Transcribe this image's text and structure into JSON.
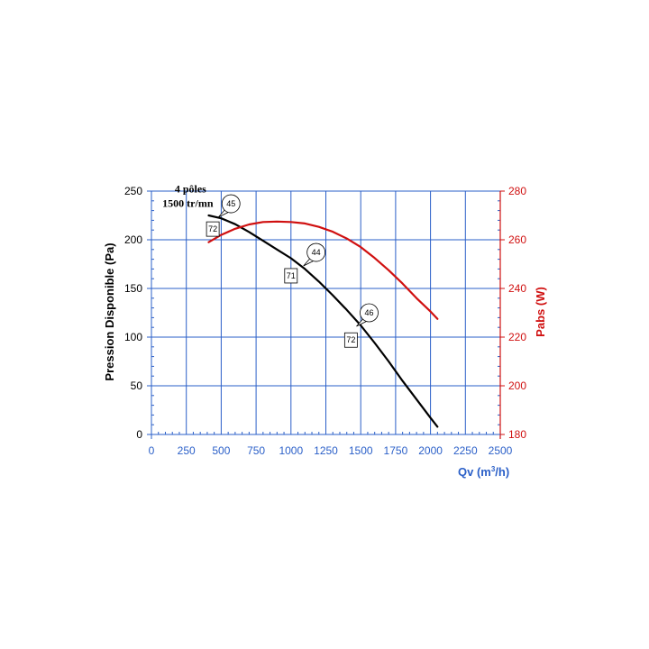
{
  "chart_data": {
    "type": "line",
    "xlabel": "Qv (m³/h)",
    "xlabel_main": "Qv (m",
    "xlabel_sup": "3",
    "xlabel_tail": "/h)",
    "ylabel_left": "Pression Disponible (Pa)",
    "ylabel_right": "Pabs (W)",
    "xlim": [
      0,
      2500
    ],
    "ylim_left": [
      0,
      250
    ],
    "ylim_right": [
      180,
      280
    ],
    "x_ticks": [
      0,
      250,
      500,
      750,
      1000,
      1250,
      1500,
      1750,
      2000,
      2250,
      2500
    ],
    "y_left_ticks": [
      0,
      50,
      100,
      150,
      200,
      250
    ],
    "y_right_ticks": [
      180,
      200,
      220,
      240,
      260,
      280
    ],
    "grid": true,
    "colors": {
      "grid": "#2a5fc8",
      "pressure": "#000000",
      "power": "#d01010"
    },
    "annotation": {
      "line1": "4 pôles",
      "line2": "1500 tr/mn",
      "x": 280,
      "y": 245
    },
    "series": [
      {
        "axis": "left",
        "color": "#000000",
        "x": [
          410,
          500,
          600,
          700,
          800,
          900,
          1000,
          1100,
          1200,
          1300,
          1400,
          1500,
          1600,
          1700,
          1800,
          1900,
          2000,
          2050
        ],
        "y": [
          225,
          222,
          216,
          208,
          199,
          190,
          181,
          170,
          157,
          143,
          128,
          112,
          94,
          75,
          55,
          36,
          17,
          8
        ]
      },
      {
        "axis": "right",
        "color": "#d01010",
        "x": [
          410,
          500,
          600,
          700,
          800,
          900,
          1000,
          1100,
          1200,
          1300,
          1400,
          1500,
          1600,
          1700,
          1800,
          1900,
          2000,
          2050
        ],
        "y": [
          259,
          262,
          264.5,
          266.3,
          267.3,
          267.5,
          267.3,
          266.7,
          265.3,
          263.3,
          260.5,
          257,
          252.5,
          247.5,
          242,
          236,
          230.5,
          227.5
        ]
      }
    ],
    "bubbles": [
      {
        "label": "45",
        "x": 570,
        "y": 237
      },
      {
        "label": "44",
        "x": 1180,
        "y": 187
      },
      {
        "label": "46",
        "x": 1560,
        "y": 125
      }
    ],
    "boxes": [
      {
        "label": "72",
        "x": 440,
        "y": 211
      },
      {
        "label": "71",
        "x": 1000,
        "y": 163
      },
      {
        "label": "72",
        "x": 1430,
        "y": 97
      }
    ]
  }
}
